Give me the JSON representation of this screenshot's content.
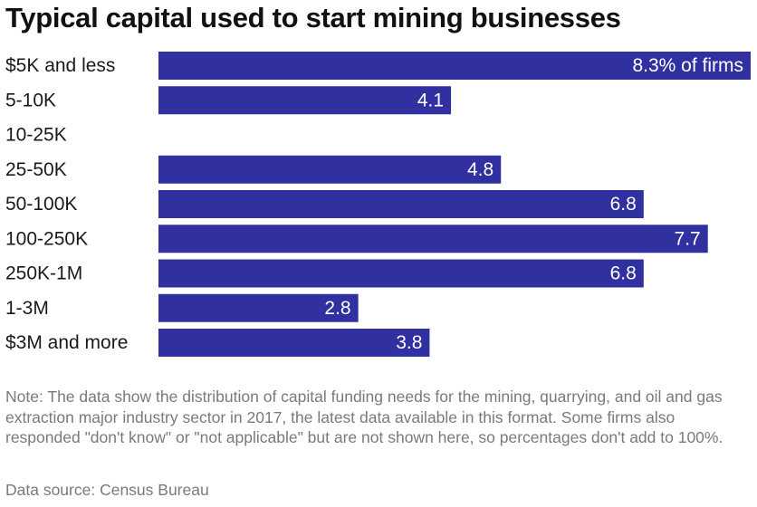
{
  "chart_data": {
    "type": "bar",
    "orientation": "horizontal",
    "title": "Typical capital used to start mining businesses",
    "categories": [
      "$5K and less",
      "5-10K",
      "10-25K",
      "25-50K",
      "50-100K",
      "100-250K",
      "250K-1M",
      "1-3M",
      "$3M and more"
    ],
    "values": [
      8.3,
      4.1,
      null,
      4.8,
      6.8,
      7.7,
      6.8,
      2.8,
      3.8
    ],
    "value_labels": [
      "8.3% of firms",
      "4.1",
      "",
      "4.8",
      "6.8",
      "7.7",
      "6.8",
      "2.8",
      "3.8"
    ],
    "unit": "% of firms",
    "xlim": [
      0,
      8.3
    ],
    "bar_color": "#3030a0",
    "grid": false,
    "legend": "none"
  },
  "note": "Note: The data show the distribution of capital funding needs for the mining, quarrying, and oil and gas extraction major industry sector in 2017, the latest data available in this format. Some firms also responded \"don't know\" or \"not applicable\" but are not shown here, so percentages don't add to 100%.",
  "source": "Data source: Census Bureau"
}
